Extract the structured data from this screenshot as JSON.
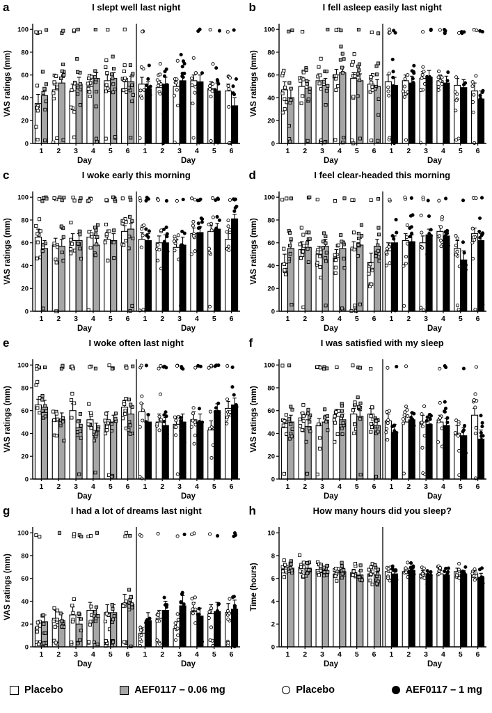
{
  "colors": {
    "bar_white": "#ffffff",
    "bar_gray": "#a6a6a6",
    "bar_black": "#000000",
    "axis": "#000000"
  },
  "legend": {
    "items": [
      {
        "marker": "open-square",
        "label": "Placebo"
      },
      {
        "marker": "gray-square",
        "label": "AEF0117 – 0.06 mg"
      },
      {
        "marker": "open-circle",
        "label": "Placebo"
      },
      {
        "marker": "black-circle",
        "label": "AEF0117 – 1 mg"
      }
    ]
  },
  "chart_data": [
    {
      "panel": "a",
      "type": "bar",
      "title": "I slept well last night",
      "ylabel": "VAS ratings (mm)",
      "xlabel": "Day",
      "ylim": [
        0,
        100
      ],
      "yticks": [
        0,
        20,
        40,
        60,
        80,
        100
      ],
      "categories": [
        "1",
        "2",
        "3",
        "4",
        "5",
        "6"
      ],
      "scatter": {
        "n": 9,
        "spread": 20,
        "hi": 0.1,
        "lo": 0.08
      },
      "groups": [
        {
          "name": "Placebo",
          "style": "white",
          "marker": "open-square",
          "values": [
            35,
            47,
            46,
            50,
            55,
            48
          ],
          "errors": [
            8,
            6,
            6,
            6,
            5,
            6
          ]
        },
        {
          "name": "AEF0117 – 0.06 mg",
          "style": "gray",
          "marker": "gray-square",
          "values": [
            42,
            53,
            52,
            57,
            57,
            54
          ],
          "errors": [
            7,
            5,
            6,
            5,
            5,
            5
          ]
        },
        {
          "name": "Placebo",
          "style": "white",
          "marker": "open-circle",
          "values": [
            52,
            49,
            50,
            55,
            48,
            46
          ],
          "errors": [
            6,
            6,
            6,
            5,
            6,
            6
          ]
        },
        {
          "name": "AEF0117 – 1 mg",
          "style": "black",
          "marker": "black-circle",
          "values": [
            48,
            52,
            55,
            54,
            46,
            33
          ],
          "errors": [
            6,
            6,
            6,
            6,
            7,
            7
          ]
        }
      ]
    },
    {
      "panel": "b",
      "type": "bar",
      "title": "I fell asleep easily last night",
      "ylabel": "VAS ratings (mm)",
      "xlabel": "Day",
      "ylim": [
        0,
        100
      ],
      "yticks": [
        0,
        20,
        40,
        60,
        80,
        100
      ],
      "categories": [
        "1",
        "2",
        "3",
        "4",
        "5",
        "6"
      ],
      "scatter": {
        "n": 9,
        "spread": 20,
        "hi": 0.12,
        "lo": 0.1
      },
      "groups": [
        {
          "name": "Placebo",
          "style": "white",
          "marker": "open-square",
          "values": [
            47,
            50,
            55,
            60,
            57,
            52
          ],
          "errors": [
            7,
            6,
            6,
            5,
            5,
            6
          ]
        },
        {
          "name": "AEF0117 – 0.06 mg",
          "style": "gray",
          "marker": "gray-square",
          "values": [
            40,
            48,
            51,
            62,
            55,
            50
          ],
          "errors": [
            8,
            7,
            6,
            5,
            6,
            6
          ]
        },
        {
          "name": "Placebo",
          "style": "white",
          "marker": "open-circle",
          "values": [
            54,
            55,
            57,
            55,
            51,
            46
          ],
          "errors": [
            6,
            5,
            6,
            5,
            6,
            7
          ]
        },
        {
          "name": "AEF0117 – 1 mg",
          "style": "black",
          "marker": "black-circle",
          "values": [
            51,
            53,
            58,
            53,
            49,
            39
          ],
          "errors": [
            7,
            6,
            6,
            6,
            7,
            7
          ]
        }
      ]
    },
    {
      "panel": "c",
      "type": "bar",
      "title": "I woke early this morning",
      "ylabel": "VAS ratings (mm)",
      "xlabel": "Day",
      "ylim": [
        0,
        100
      ],
      "yticks": [
        0,
        20,
        40,
        60,
        80,
        100
      ],
      "categories": [
        "1",
        "2",
        "3",
        "4",
        "5",
        "6"
      ],
      "scatter": {
        "n": 9,
        "spread": 18,
        "hi": 0.25,
        "lo": 0.05
      },
      "groups": [
        {
          "name": "Placebo",
          "style": "white",
          "marker": "open-square",
          "values": [
            65,
            58,
            62,
            65,
            63,
            70
          ],
          "errors": [
            7,
            6,
            6,
            6,
            6,
            5
          ]
        },
        {
          "name": "AEF0117 – 0.06 mg",
          "style": "gray",
          "marker": "gray-square",
          "values": [
            55,
            57,
            62,
            58,
            62,
            72
          ],
          "errors": [
            7,
            6,
            6,
            6,
            6,
            5
          ]
        },
        {
          "name": "Placebo",
          "style": "white",
          "marker": "open-circle",
          "values": [
            63,
            60,
            56,
            68,
            70,
            63
          ],
          "errors": [
            6,
            6,
            7,
            5,
            5,
            6
          ]
        },
        {
          "name": "AEF0117 – 1 mg",
          "style": "black",
          "marker": "black-circle",
          "values": [
            62,
            60,
            58,
            69,
            72,
            81
          ],
          "errors": [
            6,
            7,
            7,
            5,
            5,
            4
          ]
        }
      ]
    },
    {
      "panel": "d",
      "type": "bar",
      "title": "I feel clear-headed this morning",
      "ylabel": "VAS ratings (mm)",
      "xlabel": "Day",
      "ylim": [
        0,
        100
      ],
      "yticks": [
        0,
        20,
        40,
        60,
        80,
        100
      ],
      "categories": [
        "1",
        "2",
        "3",
        "4",
        "5",
        "6"
      ],
      "scatter": {
        "n": 9,
        "spread": 20,
        "hi": 0.15,
        "lo": 0.08
      },
      "groups": [
        {
          "name": "Placebo",
          "style": "white",
          "marker": "open-square",
          "values": [
            42,
            54,
            50,
            47,
            55,
            43
          ],
          "errors": [
            8,
            7,
            7,
            7,
            6,
            8
          ]
        },
        {
          "name": "AEF0117 – 0.06 mg",
          "style": "gray",
          "marker": "gray-square",
          "values": [
            55,
            56,
            57,
            55,
            58,
            57
          ],
          "errors": [
            6,
            6,
            6,
            6,
            6,
            6
          ]
        },
        {
          "name": "Placebo",
          "style": "white",
          "marker": "open-circle",
          "values": [
            53,
            62,
            60,
            70,
            55,
            68
          ],
          "errors": [
            7,
            6,
            6,
            5,
            7,
            5
          ]
        },
        {
          "name": "AEF0117 – 1 mg",
          "style": "black",
          "marker": "black-circle",
          "values": [
            60,
            61,
            67,
            66,
            45,
            62
          ],
          "errors": [
            6,
            6,
            5,
            5,
            8,
            6
          ]
        }
      ]
    },
    {
      "panel": "e",
      "type": "bar",
      "title": "I woke often last night",
      "ylabel": "VAS ratings (mm)",
      "xlabel": "Day",
      "ylim": [
        0,
        100
      ],
      "yticks": [
        0,
        20,
        40,
        60,
        80,
        100
      ],
      "categories": [
        "1",
        "2",
        "3",
        "4",
        "5",
        "6"
      ],
      "scatter": {
        "n": 9,
        "spread": 18,
        "hi": 0.28,
        "lo": 0.04
      },
      "groups": [
        {
          "name": "Placebo",
          "style": "white",
          "marker": "open-square",
          "values": [
            65,
            52,
            60,
            52,
            52,
            63
          ],
          "errors": [
            5,
            6,
            6,
            7,
            7,
            6
          ]
        },
        {
          "name": "AEF0117 – 0.06 mg",
          "style": "gray",
          "marker": "gray-square",
          "values": [
            63,
            52,
            45,
            42,
            50,
            57
          ],
          "errors": [
            6,
            6,
            7,
            7,
            6,
            6
          ]
        },
        {
          "name": "Placebo",
          "style": "white",
          "marker": "open-circle",
          "values": [
            59,
            50,
            48,
            52,
            43,
            62
          ],
          "errors": [
            7,
            7,
            7,
            7,
            8,
            6
          ]
        },
        {
          "name": "AEF0117 – 1 mg",
          "style": "black",
          "marker": "black-circle",
          "values": [
            50,
            47,
            50,
            50,
            60,
            65
          ],
          "errors": [
            7,
            7,
            7,
            7,
            6,
            6
          ]
        }
      ]
    },
    {
      "panel": "f",
      "type": "bar",
      "title": "I was satisfied with my sleep",
      "ylabel": "VAS ratings (mm)",
      "xlabel": "Day",
      "ylim": [
        0,
        100
      ],
      "yticks": [
        0,
        20,
        40,
        60,
        80,
        100
      ],
      "categories": [
        "1",
        "2",
        "3",
        "4",
        "5",
        "6"
      ],
      "scatter": {
        "n": 9,
        "spread": 18,
        "hi": 0.1,
        "lo": 0.05
      },
      "groups": [
        {
          "name": "Placebo",
          "style": "white",
          "marker": "open-square",
          "values": [
            45,
            52,
            47,
            55,
            57,
            57
          ],
          "errors": [
            6,
            6,
            6,
            6,
            5,
            5
          ]
        },
        {
          "name": "AEF0117 – 0.06 mg",
          "style": "gray",
          "marker": "gray-square",
          "values": [
            50,
            46,
            50,
            52,
            55,
            47
          ],
          "errors": [
            6,
            6,
            6,
            5,
            5,
            6
          ]
        },
        {
          "name": "Placebo",
          "style": "white",
          "marker": "open-circle",
          "values": [
            51,
            50,
            50,
            50,
            40,
            56
          ],
          "errors": [
            6,
            6,
            6,
            6,
            7,
            6
          ]
        },
        {
          "name": "AEF0117 – 1 mg",
          "style": "black",
          "marker": "black-circle",
          "values": [
            41,
            52,
            48,
            47,
            38,
            35
          ],
          "errors": [
            7,
            6,
            6,
            6,
            7,
            8
          ]
        }
      ]
    },
    {
      "panel": "g",
      "type": "bar",
      "title": "I had a lot of dreams last night",
      "ylabel": "VAS ratings (mm)",
      "xlabel": "Day",
      "ylim": [
        0,
        100
      ],
      "yticks": [
        0,
        20,
        40,
        60,
        80,
        100
      ],
      "categories": [
        "1",
        "2",
        "3",
        "4",
        "5",
        "6"
      ],
      "scatter": {
        "n": 9,
        "spread": 12,
        "hi": 0.1,
        "lo": 0.2
      },
      "groups": [
        {
          "name": "Placebo",
          "style": "white",
          "marker": "open-square",
          "values": [
            17,
            25,
            28,
            32,
            30,
            38
          ],
          "errors": [
            5,
            7,
            7,
            7,
            7,
            8
          ]
        },
        {
          "name": "AEF0117 – 0.06 mg",
          "style": "gray",
          "marker": "gray-square",
          "values": [
            22,
            23,
            20,
            28,
            30,
            37
          ],
          "errors": [
            6,
            6,
            6,
            7,
            7,
            8
          ]
        },
        {
          "name": "Placebo",
          "style": "white",
          "marker": "open-circle",
          "values": [
            12,
            25,
            16,
            31,
            29,
            30
          ],
          "errors": [
            5,
            7,
            6,
            8,
            8,
            8
          ]
        },
        {
          "name": "AEF0117 – 1 mg",
          "style": "black",
          "marker": "black-circle",
          "values": [
            23,
            32,
            36,
            27,
            31,
            33
          ],
          "errors": [
            7,
            8,
            9,
            7,
            8,
            8
          ]
        }
      ]
    },
    {
      "panel": "h",
      "type": "bar",
      "title": "How many hours did you sleep?",
      "ylabel": "Time (hours)",
      "xlabel": "Day",
      "ylim": [
        0,
        10
      ],
      "yticks": [
        0,
        2,
        4,
        6,
        8,
        10
      ],
      "categories": [
        "1",
        "2",
        "3",
        "4",
        "5",
        "6"
      ],
      "scatter": {
        "n": 9,
        "spread": 0.8,
        "hi": 0,
        "lo": 0
      },
      "groups": [
        {
          "name": "Placebo",
          "style": "white",
          "marker": "open-square",
          "values": [
            6.8,
            7.0,
            6.8,
            6.4,
            6.5,
            6.4
          ],
          "errors": [
            0.3,
            0.25,
            0.3,
            0.3,
            0.3,
            0.3
          ]
        },
        {
          "name": "AEF0117 – 0.06 mg",
          "style": "gray",
          "marker": "gray-square",
          "values": [
            6.9,
            6.9,
            6.7,
            6.6,
            6.3,
            6.3
          ],
          "errors": [
            0.3,
            0.3,
            0.3,
            0.3,
            0.35,
            0.3
          ]
        },
        {
          "name": "Placebo",
          "style": "white",
          "marker": "open-circle",
          "values": [
            6.6,
            6.6,
            6.4,
            6.4,
            6.6,
            6.4
          ],
          "errors": [
            0.3,
            0.3,
            0.3,
            0.3,
            0.3,
            0.3
          ]
        },
        {
          "name": "AEF0117 – 1 mg",
          "style": "black",
          "marker": "black-circle",
          "values": [
            6.4,
            6.7,
            6.3,
            6.3,
            6.4,
            6.1
          ],
          "errors": [
            0.3,
            0.3,
            0.3,
            0.3,
            0.3,
            0.35
          ]
        }
      ]
    }
  ]
}
